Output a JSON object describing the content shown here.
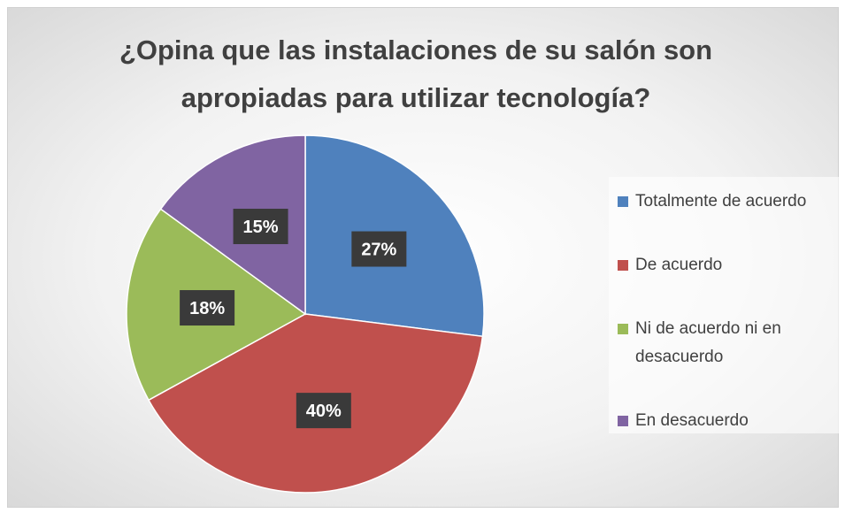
{
  "chart_data": {
    "type": "pie",
    "title": "¿Opina que las instalaciones de su salón son apropiadas para utilizar tecnología?",
    "categories": [
      "Totalmente de acuerdo",
      "De acuerdo",
      "Ni de acuerdo ni en desacuerdo",
      "En desacuerdo"
    ],
    "values": [
      27,
      40,
      18,
      15
    ],
    "value_labels": [
      "27%",
      "40%",
      "18%",
      "15%"
    ],
    "colors": [
      "#4f81bd",
      "#c0504d",
      "#9bbb59",
      "#8064a2"
    ],
    "legend": "right"
  }
}
